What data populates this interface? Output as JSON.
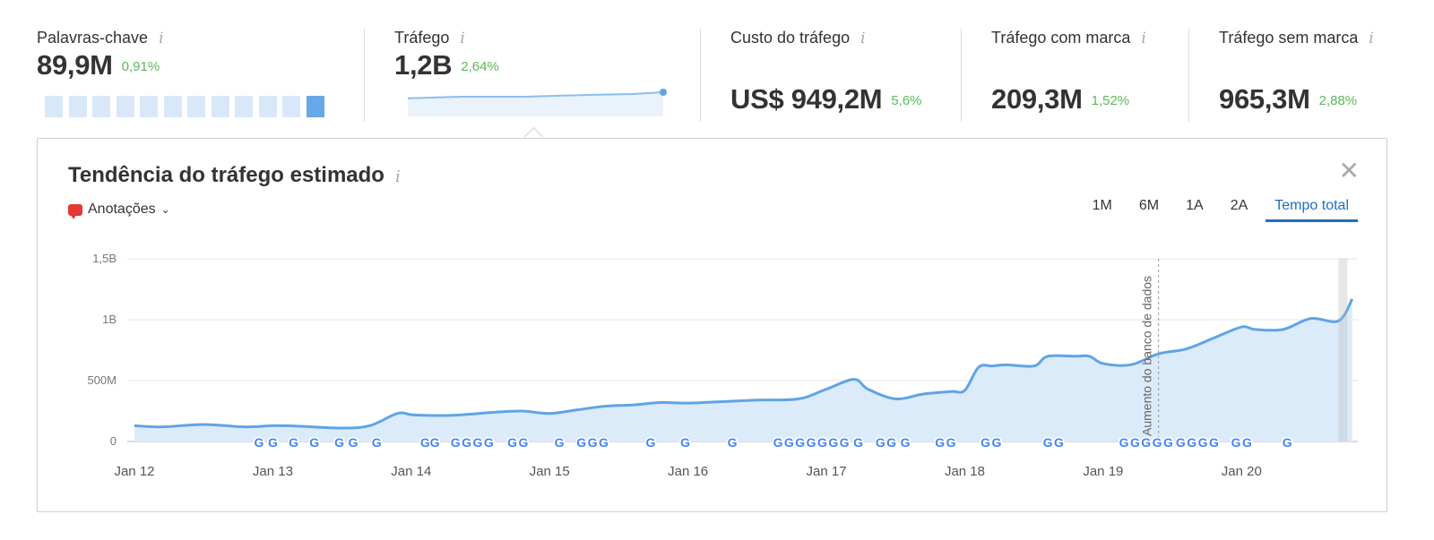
{
  "metrics": [
    {
      "label": "Palavras-chave",
      "value": "89,9M",
      "change": "0,91%"
    },
    {
      "label": "Tráfego",
      "value": "1,2B",
      "change": "2,64%"
    },
    {
      "label": "Custo do tráfego",
      "value": "US$ 949,2M",
      "change": "5,6%"
    },
    {
      "label": "Tráfego com marca",
      "value": "209,3M",
      "change": "1,52%"
    },
    {
      "label": "Tráfego sem marca",
      "value": "965,3M",
      "change": "2,88%"
    }
  ],
  "info_glyph": "i",
  "keyword_bars": {
    "count": 12,
    "active_index": 11
  },
  "panel": {
    "title": "Tendência do tráfego estimado",
    "annotations_label": "Anotações",
    "close_label": "✕",
    "time_tabs": [
      "1M",
      "6M",
      "1A",
      "2A",
      "Tempo total"
    ],
    "active_tab": "Tempo total"
  },
  "colors": {
    "line": "#5fa4e6",
    "area": "#dcebfa",
    "change": "#5cb85c",
    "accent": "#1e6fc2"
  },
  "chart_data": {
    "type": "area",
    "ylabels": [
      "0",
      "500M",
      "1B",
      "1,5B"
    ],
    "yvalues": [
      0,
      500,
      1000,
      1500
    ],
    "xlabels": [
      "Jan 12",
      "Jan 13",
      "Jan 14",
      "Jan 15",
      "Jan 16",
      "Jan 17",
      "Jan 18",
      "Jan 19",
      "Jan 20"
    ],
    "annotation_label": "Aumento do banco de dados",
    "annotation_x": 2019.4,
    "series": [
      {
        "x": [
          2012.0,
          2012.2,
          2012.5,
          2012.8,
          2013.0,
          2013.2,
          2013.5,
          2013.7,
          2013.9,
          2014.0,
          2014.1,
          2014.3,
          2014.6,
          2014.8,
          2015.0,
          2015.2,
          2015.4,
          2015.6,
          2015.8,
          2016.0,
          2016.3,
          2016.5,
          2016.8,
          2017.0,
          2017.2,
          2017.3,
          2017.5,
          2017.7,
          2017.9,
          2018.0,
          2018.1,
          2018.2,
          2018.3,
          2018.5,
          2018.6,
          2018.8,
          2018.9,
          2019.0,
          2019.2,
          2019.4,
          2019.6,
          2019.8,
          2020.0,
          2020.1,
          2020.3,
          2020.5,
          2020.7,
          2020.8
        ],
        "y": [
          130,
          120,
          140,
          120,
          130,
          125,
          110,
          130,
          230,
          220,
          215,
          215,
          240,
          250,
          230,
          260,
          290,
          300,
          320,
          315,
          330,
          340,
          350,
          430,
          510,
          430,
          350,
          390,
          410,
          420,
          610,
          620,
          630,
          620,
          700,
          700,
          700,
          640,
          630,
          720,
          760,
          850,
          940,
          920,
          920,
          1010,
          990,
          1170
        ]
      }
    ],
    "google_updates": [
      2012.9,
      2013.0,
      2013.15,
      2013.3,
      2013.48,
      2013.58,
      2013.75,
      2014.1,
      2014.17,
      2014.32,
      2014.4,
      2014.48,
      2014.56,
      2014.73,
      2014.81,
      2015.07,
      2015.23,
      2015.31,
      2015.39,
      2015.73,
      2015.98,
      2016.32,
      2016.65,
      2016.73,
      2016.81,
      2016.89,
      2016.97,
      2017.05,
      2017.13,
      2017.23,
      2017.39,
      2017.47,
      2017.57,
      2017.82,
      2017.9,
      2018.15,
      2018.23,
      2018.6,
      2018.68,
      2019.15,
      2019.23,
      2019.31,
      2019.39,
      2019.47,
      2019.56,
      2019.64,
      2019.72,
      2019.8,
      2019.96,
      2020.04,
      2020.33
    ]
  }
}
